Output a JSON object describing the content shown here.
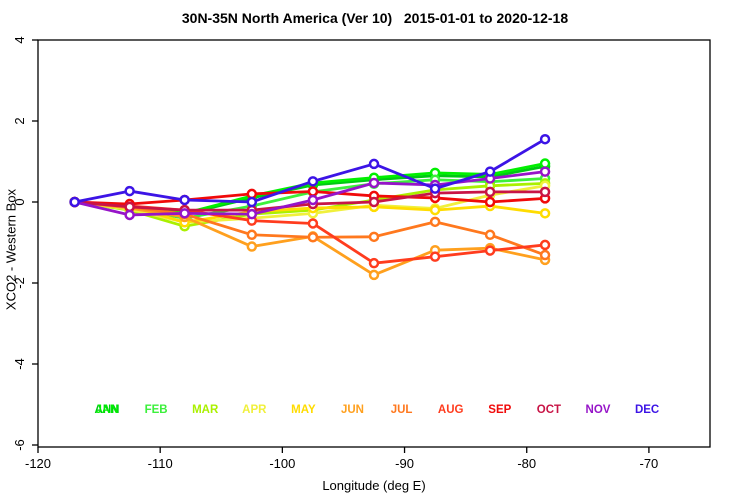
{
  "chart_data": {
    "type": "line",
    "title": "30N-35N North America (Ver 10)   2015-01-01 to 2020-12-18",
    "xlabel": "Longitude (deg E)",
    "ylabel": "XCO2 - Western Box",
    "xlim": [
      -120,
      -65
    ],
    "ylim": [
      -6,
      4
    ],
    "x_ticks": [
      -120,
      -110,
      -100,
      -90,
      -80,
      -70
    ],
    "x_tick_labels": [
      "-120",
      "-110",
      "-100",
      "-90",
      "-80",
      "-70"
    ],
    "y_ticks": [
      4,
      2,
      0,
      -2,
      -4,
      -6
    ],
    "y_tick_labels": [
      "4",
      "2",
      "0",
      "-2",
      "-4",
      "-6"
    ],
    "grid": false,
    "marker": "open-circle",
    "x": [
      -117,
      -112.5,
      -108,
      -102.5,
      -97.5,
      -92.5,
      -87.5,
      -83,
      -78.5
    ],
    "series": [
      {
        "name": "ANN",
        "color": "#00c814",
        "values": [
          0,
          -0.12,
          -0.3,
          0.1,
          0.42,
          0.55,
          0.65,
          0.62,
          0.88
        ]
      },
      {
        "name": "JAN",
        "color": "#00f000",
        "values": [
          0,
          -0.1,
          -0.28,
          0.15,
          0.47,
          0.6,
          0.72,
          0.68,
          0.95
        ]
      },
      {
        "name": "FEB",
        "color": "#3cf03c",
        "values": [
          0,
          -0.15,
          -0.4,
          -0.1,
          0.25,
          0.45,
          0.55,
          0.5,
          0.58
        ]
      },
      {
        "name": "MAR",
        "color": "#aaf000",
        "values": [
          0,
          -0.2,
          -0.6,
          -0.3,
          -0.2,
          0.05,
          0.3,
          0.4,
          0.46
        ]
      },
      {
        "name": "APR",
        "color": "#f0f03c",
        "values": [
          0,
          -0.18,
          -0.5,
          -0.4,
          -0.28,
          -0.08,
          -0.16,
          0.17,
          0.4
        ]
      },
      {
        "name": "MAY",
        "color": "#ffdc00",
        "values": [
          0,
          -0.1,
          -0.5,
          -0.24,
          -0.15,
          -0.12,
          -0.2,
          -0.1,
          -0.28
        ]
      },
      {
        "name": "JUN",
        "color": "#ffa01e",
        "values": [
          0,
          -0.15,
          -0.37,
          -1.1,
          -0.85,
          -1.8,
          -1.19,
          -1.14,
          -1.43
        ]
      },
      {
        "name": "JUL",
        "color": "#ff781e",
        "values": [
          0,
          -0.12,
          -0.3,
          -0.81,
          -0.87,
          -0.86,
          -0.49,
          -0.81,
          -1.31
        ]
      },
      {
        "name": "AUG",
        "color": "#ff3c1e",
        "values": [
          0,
          -0.1,
          -0.2,
          -0.46,
          -0.53,
          -1.51,
          -1.35,
          -1.2,
          -1.06
        ]
      },
      {
        "name": "SEP",
        "color": "#f00a0a",
        "values": [
          0,
          -0.05,
          0.05,
          0.2,
          0.26,
          0.15,
          0.1,
          0.0,
          0.09
        ]
      },
      {
        "name": "OCT",
        "color": "#c81446",
        "values": [
          0,
          -0.12,
          -0.2,
          -0.2,
          -0.05,
          0.0,
          0.22,
          0.25,
          0.25
        ]
      },
      {
        "name": "NOV",
        "color": "#9614c8",
        "values": [
          0,
          -0.32,
          -0.28,
          -0.3,
          0.05,
          0.47,
          0.42,
          0.58,
          0.75
        ]
      },
      {
        "name": "DEC",
        "color": "#3c14e6",
        "values": [
          0,
          0.27,
          0.05,
          0.0,
          0.51,
          0.94,
          0.33,
          0.75,
          1.55
        ]
      }
    ],
    "legend": {
      "position": "bottom-inside",
      "entries": [
        {
          "label": "ANN",
          "slot": 0
        },
        {
          "label": "JAN",
          "slot": 0
        },
        {
          "label": "FEB",
          "slot": 1
        },
        {
          "label": "MAR",
          "slot": 2
        },
        {
          "label": "APR",
          "slot": 3
        },
        {
          "label": "MAY",
          "slot": 4
        },
        {
          "label": "JUN",
          "slot": 5
        },
        {
          "label": "JUL",
          "slot": 6
        },
        {
          "label": "AUG",
          "slot": 7
        },
        {
          "label": "SEP",
          "slot": 8
        },
        {
          "label": "OCT",
          "slot": 9
        },
        {
          "label": "NOV",
          "slot": 10
        },
        {
          "label": "DEC",
          "slot": 11
        }
      ]
    }
  }
}
